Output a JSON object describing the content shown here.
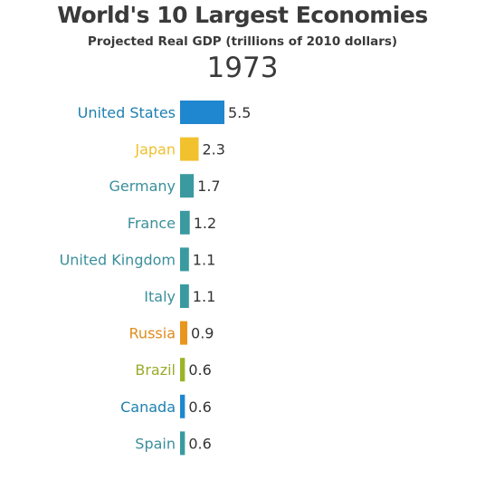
{
  "chart_data": {
    "type": "bar",
    "orientation": "horizontal",
    "title": "World's 10 Largest Economies",
    "subtitle": "Projected Real GDP (trillions of 2010 dollars)",
    "year": "1973",
    "categories": [
      "United States",
      "Japan",
      "Germany",
      "France",
      "United Kingdom",
      "Italy",
      "Russia",
      "Brazil",
      "Canada",
      "Spain"
    ],
    "values": [
      5.5,
      2.3,
      1.7,
      1.2,
      1.1,
      1.1,
      0.9,
      0.6,
      0.6,
      0.6
    ],
    "value_labels": [
      "5.5",
      "2.3",
      "1.7",
      "1.2",
      "1.1",
      "1.1",
      "0.9",
      "0.6",
      "0.6",
      "0.6"
    ],
    "bar_colors": [
      "#1f87cf",
      "#f2c12e",
      "#3a9aa0",
      "#3a9aa0",
      "#3a9aa0",
      "#3a9aa0",
      "#e8961e",
      "#9ab427",
      "#1f87cf",
      "#3a9aa0"
    ],
    "label_colors": [
      "#1d7fb0",
      "#f0c030",
      "#3a8f9a",
      "#3a8f9a",
      "#3a8f9a",
      "#3a8f9a",
      "#e08c1c",
      "#9aab2a",
      "#1d7fb0",
      "#3a8f9a"
    ],
    "xlim": [
      0,
      5.5
    ],
    "grid": false,
    "legend": "none"
  }
}
